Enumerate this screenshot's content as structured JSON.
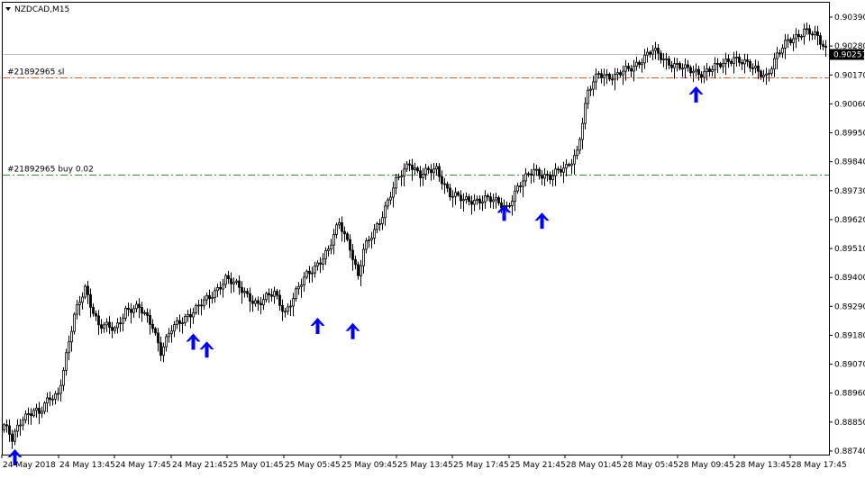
{
  "window": {
    "title": "NZDCAD,M15",
    "menu_icon": "triangle-down-icon"
  },
  "current_price": "0.90251",
  "lines": [
    {
      "label": "#21892965 sl",
      "price": 0.9016,
      "color": "#e8572a",
      "style": "dash-dot"
    },
    {
      "label": "#21892965 buy 0.02",
      "price": 0.8979,
      "color": "#2e8b2e",
      "style": "dash-dot"
    }
  ],
  "bid_line": {
    "price": 0.90251,
    "color": "#c0c0c0"
  },
  "colors": {
    "candle": "#000000",
    "arrow": "#0000ff",
    "price_badge_bg": "#000000",
    "price_badge_text": "#ffffff"
  },
  "chart_data": {
    "type": "candlestick",
    "symbol": "NZDCAD",
    "timeframe": "M15",
    "ylim": [
      0.8874,
      0.9042
    ],
    "y_ticks": [
      "0.90390",
      "0.90280",
      "0.90170",
      "0.90060",
      "0.89950",
      "0.89840",
      "0.89730",
      "0.89620",
      "0.89510",
      "0.89400",
      "0.89290",
      "0.89180",
      "0.89070",
      "0.88960",
      "0.88850",
      "0.88740"
    ],
    "x_ticks": [
      "24 May 2018",
      "24 May 13:45",
      "24 May 17:45",
      "24 May 21:45",
      "25 May 01:45",
      "25 May 05:45",
      "25 May 09:45",
      "25 May 13:45",
      "25 May 17:45",
      "25 May 21:45",
      "28 May 01:45",
      "28 May 05:45",
      "28 May 09:45",
      "28 May 13:45",
      "28 May 17:45"
    ],
    "path_points": [
      [
        0,
        0.8884
      ],
      [
        3,
        0.8878
      ],
      [
        7,
        0.8887
      ],
      [
        11,
        0.889
      ],
      [
        13,
        0.8888
      ],
      [
        17,
        0.8894
      ],
      [
        20,
        0.8896
      ],
      [
        26,
        0.8925
      ],
      [
        30,
        0.8936
      ],
      [
        35,
        0.8922
      ],
      [
        41,
        0.892
      ],
      [
        45,
        0.8928
      ],
      [
        50,
        0.8928
      ],
      [
        55,
        0.8922
      ],
      [
        58,
        0.8912
      ],
      [
        62,
        0.892
      ],
      [
        68,
        0.8926
      ],
      [
        76,
        0.8932
      ],
      [
        82,
        0.894
      ],
      [
        88,
        0.8935
      ],
      [
        94,
        0.893
      ],
      [
        100,
        0.8934
      ],
      [
        104,
        0.8927
      ],
      [
        112,
        0.8941
      ],
      [
        120,
        0.895
      ],
      [
        124,
        0.8961
      ],
      [
        128,
        0.8952
      ],
      [
        131,
        0.894
      ],
      [
        133,
        0.895
      ],
      [
        139,
        0.8962
      ],
      [
        145,
        0.8976
      ],
      [
        150,
        0.8984
      ],
      [
        154,
        0.8979
      ],
      [
        160,
        0.8981
      ],
      [
        165,
        0.8972
      ],
      [
        170,
        0.8969
      ],
      [
        178,
        0.897
      ],
      [
        186,
        0.8967
      ],
      [
        190,
        0.8974
      ],
      [
        196,
        0.8981
      ],
      [
        202,
        0.8978
      ],
      [
        208,
        0.8982
      ],
      [
        212,
        0.8988
      ],
      [
        216,
        0.901
      ],
      [
        220,
        0.9018
      ],
      [
        226,
        0.9016
      ],
      [
        232,
        0.902
      ],
      [
        240,
        0.9026
      ],
      [
        246,
        0.9022
      ],
      [
        252,
        0.9019
      ],
      [
        258,
        0.9018
      ],
      [
        264,
        0.902
      ],
      [
        270,
        0.9024
      ],
      [
        276,
        0.902
      ],
      [
        282,
        0.9017
      ],
      [
        286,
        0.9024
      ],
      [
        290,
        0.903
      ],
      [
        296,
        0.9034
      ],
      [
        301,
        0.9031
      ],
      [
        304,
        0.9027
      ]
    ],
    "arrows": [
      {
        "candle": 4,
        "price": 0.8874
      },
      {
        "candle": 70,
        "price": 0.8918
      },
      {
        "candle": 75,
        "price": 0.8915
      },
      {
        "candle": 116,
        "price": 0.8924
      },
      {
        "candle": 129,
        "price": 0.8922
      },
      {
        "candle": 185,
        "price": 0.8967
      },
      {
        "candle": 199,
        "price": 0.8964
      },
      {
        "candle": 256,
        "price": 0.9012
      }
    ]
  }
}
